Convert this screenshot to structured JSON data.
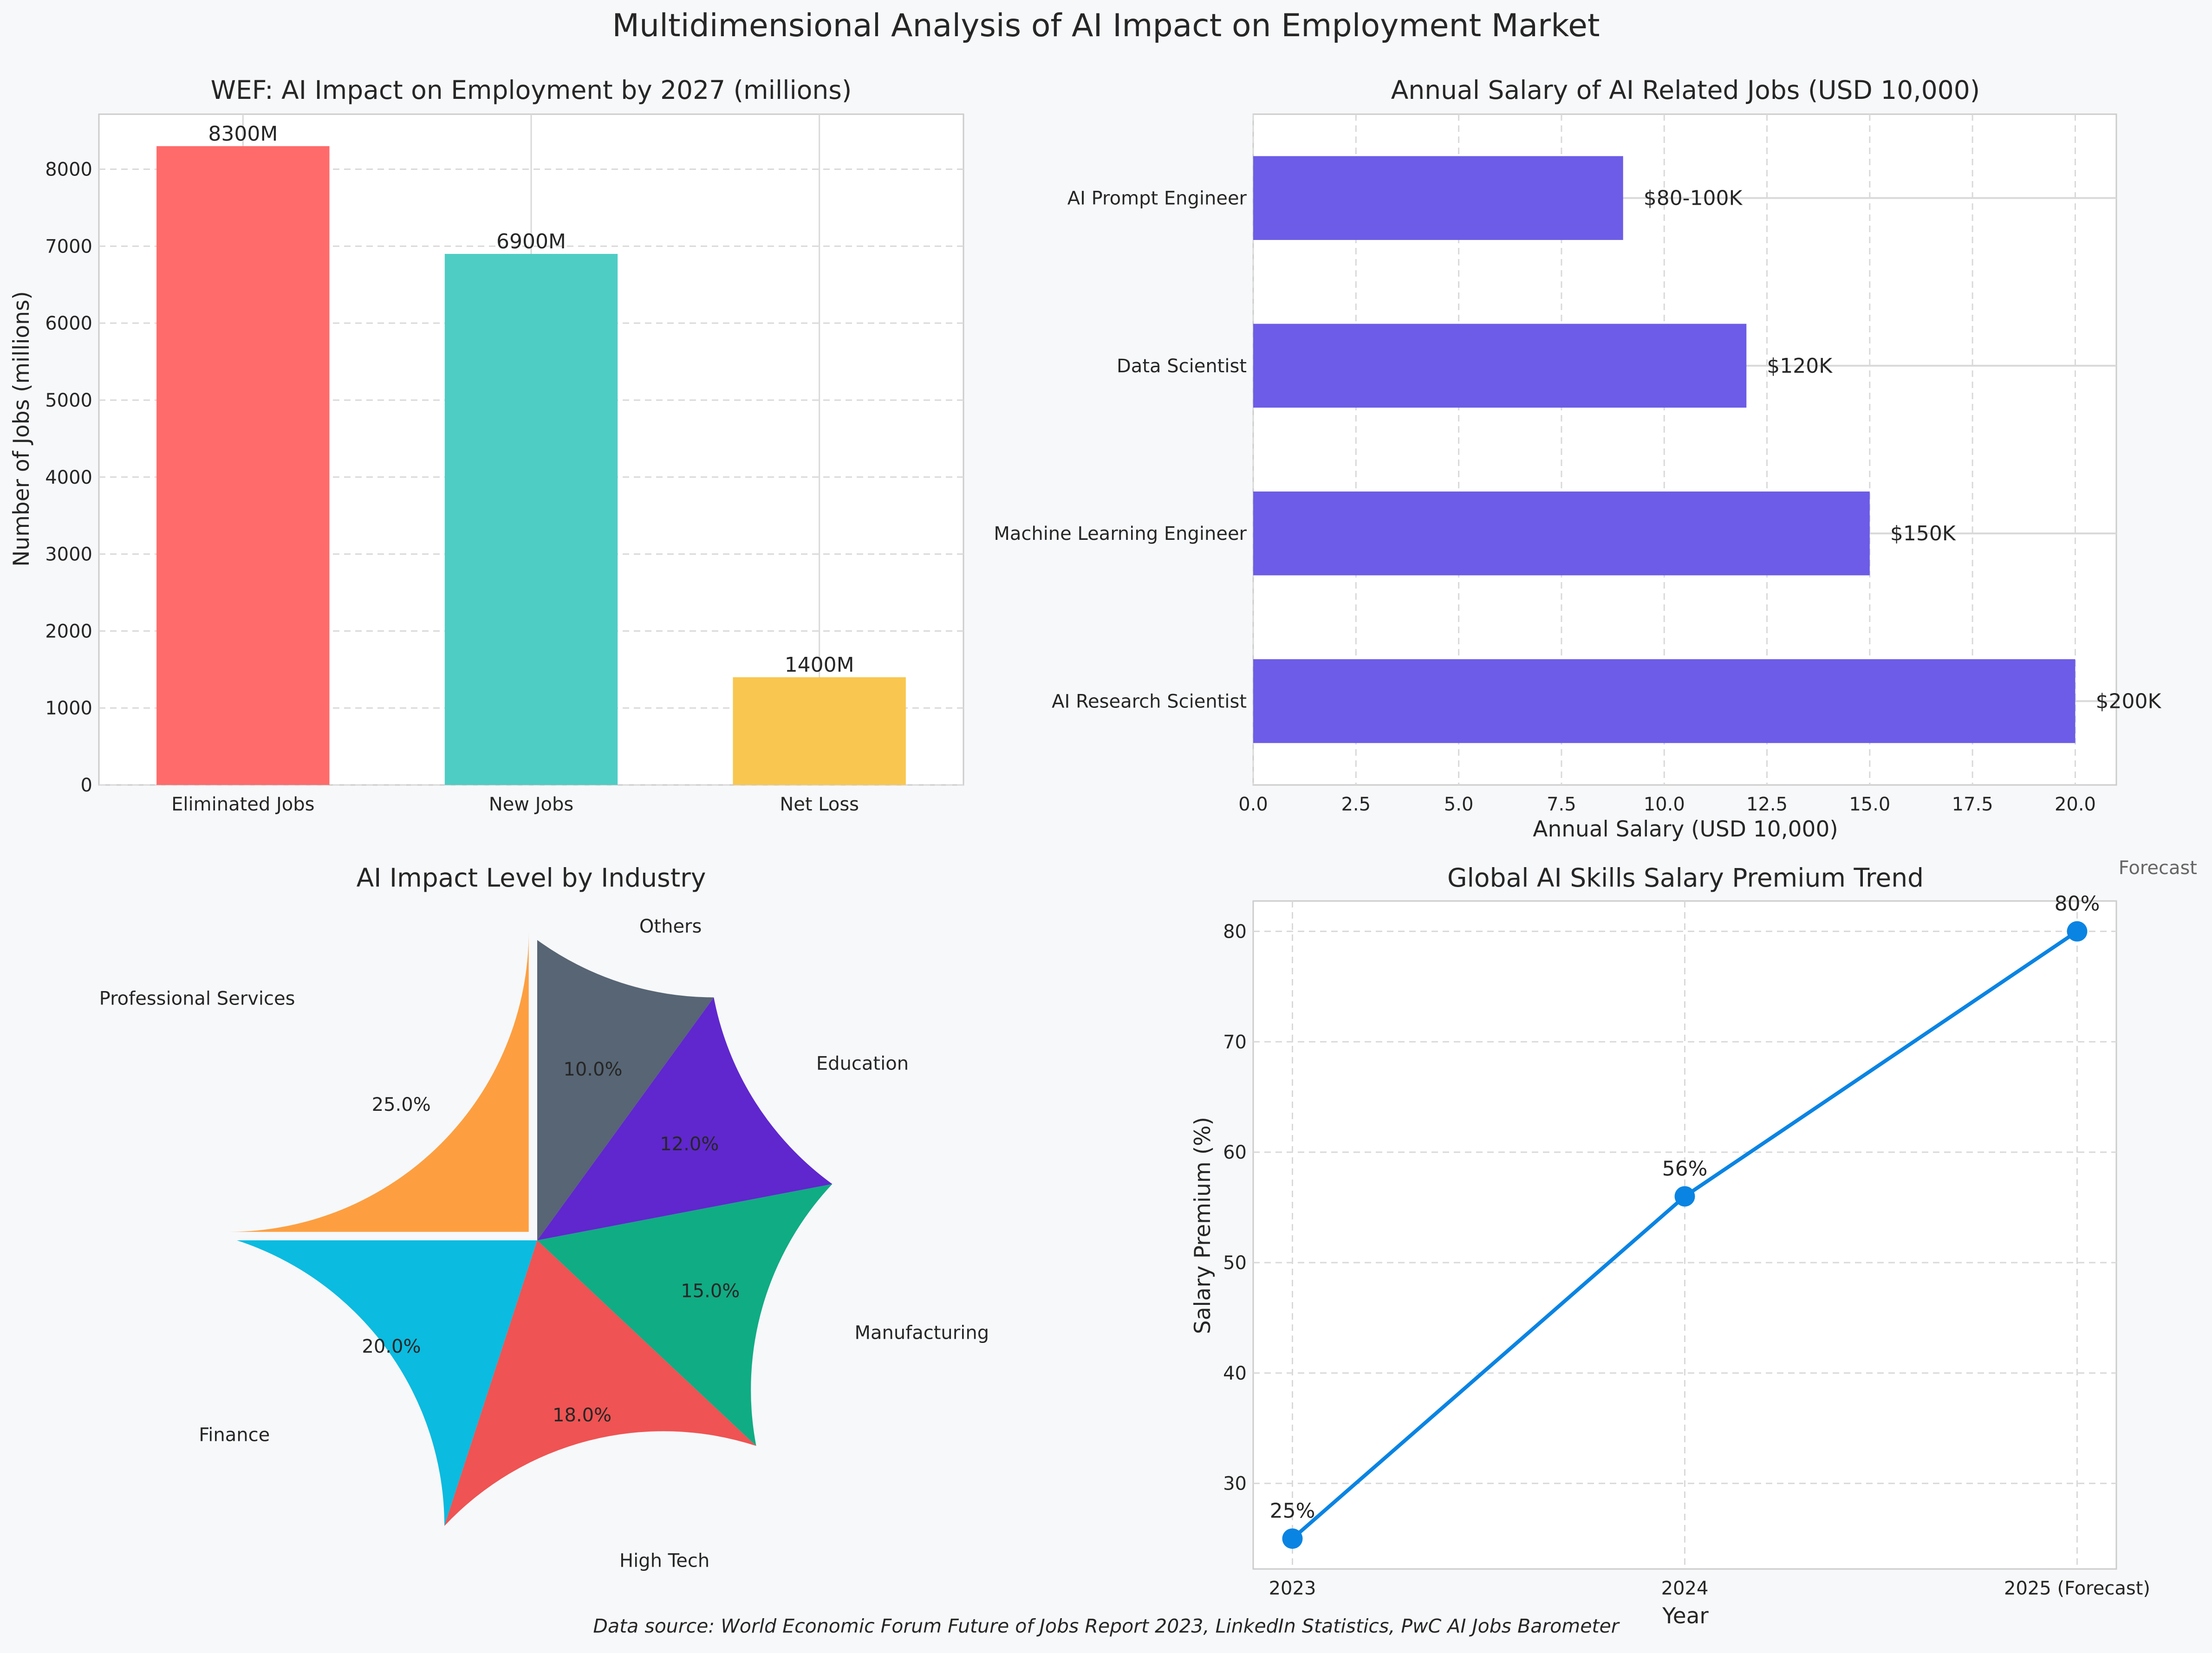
{
  "title": "Multidimensional Analysis of AI Impact on Employment Market",
  "source_note": "Data source: World Economic Forum Future of Jobs Report 2023, LinkedIn Statistics, PwC AI Jobs Barometer",
  "colors": {
    "background": "#f7f8fa",
    "grid": "#d9d9d9",
    "bar_eliminated": "#ff6b6b",
    "bar_new": "#4ecdc4",
    "bar_net": "#f9c74f",
    "salary_bars": "#6c5ce7",
    "line": "#0984e3",
    "pie_professional": "#fd9f40",
    "pie_finance": "#0bbbe0",
    "pie_hightech": "#ef5353",
    "pie_manufacturing": "#10ac84",
    "pie_education": "#5f27cd",
    "pie_others": "#576574"
  },
  "chart_data": [
    {
      "type": "bar",
      "title": "WEF: AI Impact on Employment by 2027 (millions)",
      "xlabel": "",
      "ylabel": "Number of Jobs (millions)",
      "categories": [
        "Eliminated Jobs",
        "New Jobs",
        "Net Loss"
      ],
      "values": [
        8300,
        6900,
        1400
      ],
      "data_labels": [
        "8300M",
        "6900M",
        "1400M"
      ],
      "ylim": [
        0,
        8715
      ],
      "yticks": [
        0,
        1000,
        2000,
        3000,
        4000,
        5000,
        6000,
        7000,
        8000
      ],
      "grid": true
    },
    {
      "type": "bar",
      "orientation": "horizontal",
      "title": "Annual Salary of AI Related Jobs (USD 10,000)",
      "xlabel": "Annual Salary (USD 10,000)",
      "ylabel": "",
      "categories": [
        "AI Research Scientist",
        "Machine Learning Engineer",
        "Data Scientist",
        "AI Prompt Engineer"
      ],
      "values": [
        20,
        15,
        12,
        9
      ],
      "data_labels": [
        "$200K",
        "$150K",
        "$120K",
        "$80-100K"
      ],
      "xlim": [
        0,
        21
      ],
      "xticks": [
        "0.0",
        "2.5",
        "5.0",
        "7.5",
        "10.0",
        "12.5",
        "15.0",
        "17.5",
        "20.0"
      ],
      "grid": true
    },
    {
      "type": "pie",
      "title": "AI Impact Level by Industry",
      "labels": [
        "Professional Services",
        "Finance",
        "High Tech",
        "Manufacturing",
        "Education",
        "Others"
      ],
      "values": [
        25,
        20,
        18,
        15,
        12,
        10
      ],
      "pct_labels": [
        "25.0%",
        "20.0%",
        "18.0%",
        "15.0%",
        "12.0%",
        "10.0%"
      ],
      "exploded": "Professional Services",
      "start_angle_deg": 90
    },
    {
      "type": "line",
      "title": "Global AI Skills Salary Premium Trend",
      "xlabel": "Year",
      "ylabel": "Salary Premium (%)",
      "x": [
        "2023",
        "2024",
        "2025 (Forecast)"
      ],
      "y": [
        25,
        56,
        80
      ],
      "data_labels": [
        "25%",
        "56%",
        "80%"
      ],
      "ylim": [
        22.25,
        82.75
      ],
      "yticks": [
        30,
        40,
        50,
        60,
        70,
        80
      ],
      "annotation": "Forecast",
      "grid": true
    }
  ]
}
